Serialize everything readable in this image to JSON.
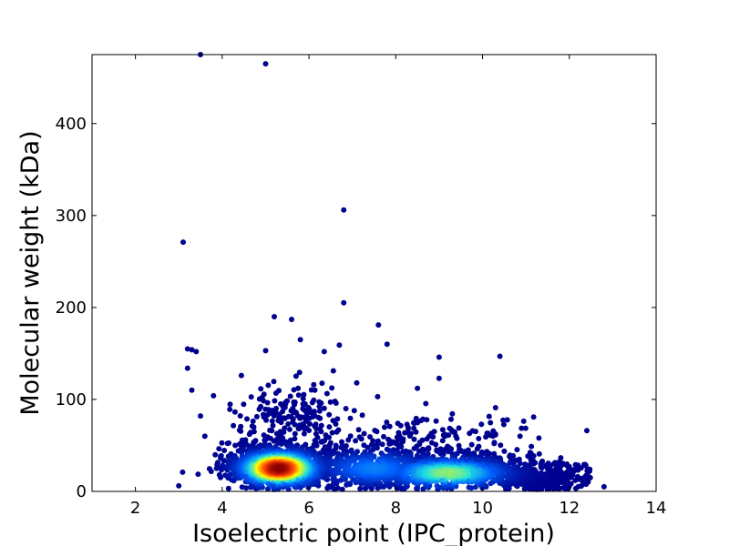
{
  "chart_data": {
    "type": "scatter",
    "title": "",
    "xlabel": "Isoelectric point (IPC_protein)",
    "ylabel": "Molecular weight (kDa)",
    "xlim": [
      1,
      14
    ],
    "ylim": [
      0,
      475
    ],
    "xticks": [
      2,
      4,
      6,
      8,
      10,
      12,
      14
    ],
    "yticks": [
      0,
      100,
      200,
      300,
      400
    ],
    "grid": false,
    "legend": "none",
    "colormap": "jet (point density)",
    "density_peak": {
      "x": 5.3,
      "y": 25
    },
    "colors": {
      "low_density": "#00008f",
      "mid_low": "#0060ff",
      "mid": "#20e0e0",
      "mid_high": "#ffff00",
      "high": "#ff4000",
      "peak": "#8b0000"
    },
    "outliers": [
      {
        "x": 3.5,
        "y": 475
      },
      {
        "x": 5.0,
        "y": 465
      },
      {
        "x": 3.1,
        "y": 271
      },
      {
        "x": 6.8,
        "y": 306
      },
      {
        "x": 6.8,
        "y": 205
      },
      {
        "x": 5.2,
        "y": 190
      },
      {
        "x": 5.6,
        "y": 187
      },
      {
        "x": 7.6,
        "y": 181
      },
      {
        "x": 5.8,
        "y": 165
      },
      {
        "x": 7.8,
        "y": 160
      },
      {
        "x": 6.7,
        "y": 159
      },
      {
        "x": 3.2,
        "y": 155
      },
      {
        "x": 3.4,
        "y": 152
      },
      {
        "x": 3.3,
        "y": 154
      },
      {
        "x": 10.4,
        "y": 147
      },
      {
        "x": 9.0,
        "y": 146
      },
      {
        "x": 3.2,
        "y": 134
      },
      {
        "x": 5.0,
        "y": 153
      },
      {
        "x": 3.8,
        "y": 104
      },
      {
        "x": 3.5,
        "y": 82
      },
      {
        "x": 12.8,
        "y": 5
      },
      {
        "x": 3.0,
        "y": 6
      },
      {
        "x": 9.0,
        "y": 123
      },
      {
        "x": 10.3,
        "y": 91
      },
      {
        "x": 7.1,
        "y": 118
      },
      {
        "x": 8.5,
        "y": 112
      },
      {
        "x": 11.3,
        "y": 58
      },
      {
        "x": 3.3,
        "y": 110
      },
      {
        "x": 3.6,
        "y": 60
      },
      {
        "x": 4.3,
        "y": 50
      }
    ],
    "clusters": [
      {
        "cx": 5.3,
        "cy": 28,
        "sx": 0.55,
        "sy": 14,
        "n": 1500
      },
      {
        "cx": 9.2,
        "cy": 22,
        "sx": 1.3,
        "sy": 12,
        "n": 1100
      },
      {
        "cx": 7.5,
        "cy": 28,
        "sx": 0.9,
        "sy": 14,
        "n": 350
      },
      {
        "cx": 5.6,
        "cy": 85,
        "sx": 0.6,
        "sy": 25,
        "n": 180
      },
      {
        "cx": 8.7,
        "cy": 55,
        "sx": 1.3,
        "sy": 18,
        "n": 150
      },
      {
        "cx": 11.5,
        "cy": 12,
        "sx": 0.4,
        "sy": 8,
        "n": 200
      }
    ]
  }
}
